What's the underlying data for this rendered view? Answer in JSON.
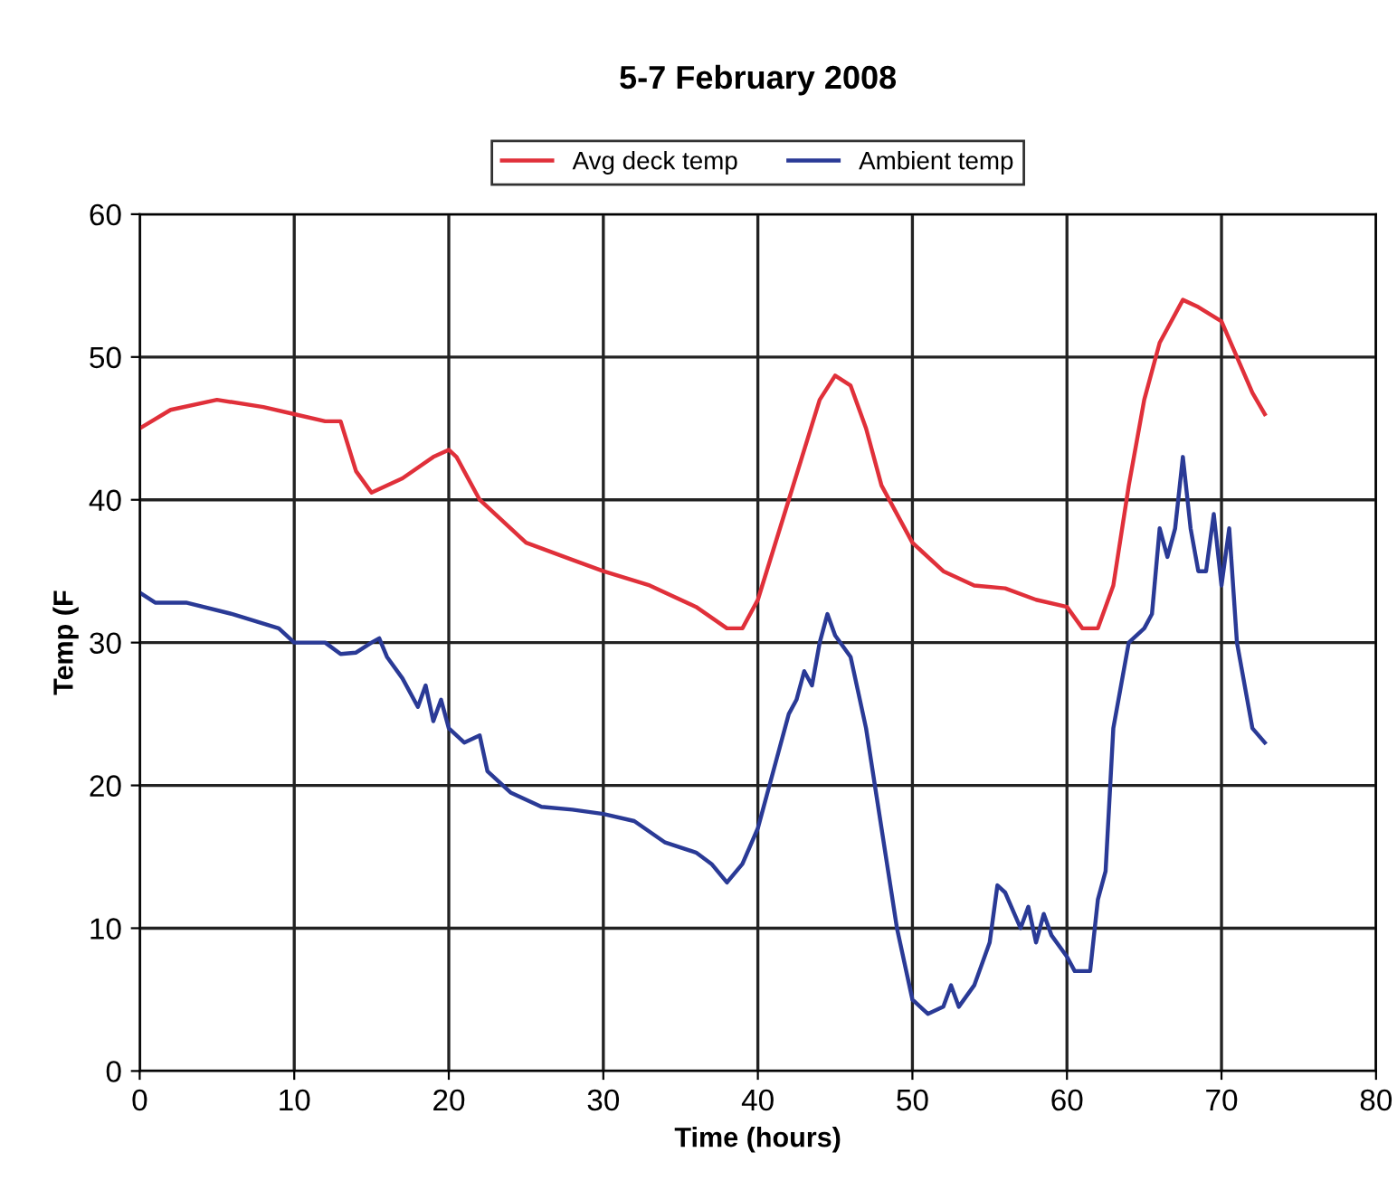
{
  "chart_data": {
    "type": "line",
    "title": "5-7 February 2008",
    "xlabel": "Time (hours)",
    "ylabel": "Temp (F",
    "xlim": [
      0,
      80
    ],
    "ylim": [
      0,
      60
    ],
    "xticks": [
      0,
      10,
      20,
      30,
      40,
      50,
      60,
      70,
      80
    ],
    "yticks": [
      0,
      10,
      20,
      30,
      40,
      50,
      60
    ],
    "grid": true,
    "legend": "top",
    "marker": "none",
    "line_style": "solid",
    "series": [
      {
        "name": "Avg deck temp",
        "color": "#e0303a",
        "x": [
          0,
          2,
          5,
          8,
          10,
          12,
          13,
          14,
          15,
          17,
          19,
          20,
          20.5,
          22,
          25,
          28,
          30,
          33,
          36,
          38,
          39,
          40,
          42,
          44,
          45,
          46,
          47,
          48,
          50,
          52,
          54,
          56,
          58,
          60,
          61,
          62,
          63,
          64,
          65,
          66,
          67.5,
          68.5,
          70,
          71,
          72,
          72.8
        ],
        "values": [
          45,
          46.3,
          47,
          46.5,
          46,
          45.5,
          45.5,
          42,
          40.5,
          41.5,
          43,
          43.5,
          43,
          40,
          37,
          35.8,
          35,
          34,
          32.5,
          31,
          31,
          33,
          40,
          47,
          48.7,
          48,
          45,
          41,
          37,
          35,
          34,
          33.8,
          33,
          32.5,
          31,
          31,
          34,
          41,
          47,
          51,
          54,
          53.5,
          52.5,
          50,
          47.5,
          46
        ]
      },
      {
        "name": "Ambient temp",
        "color": "#2a3a96",
        "x": [
          0,
          1,
          3,
          6,
          9,
          10,
          12,
          13,
          14,
          15,
          15.5,
          16,
          17,
          18,
          18.5,
          19,
          19.5,
          20,
          21,
          22,
          22.5,
          24,
          26,
          28,
          30,
          32,
          34,
          36,
          37,
          38,
          39,
          40,
          41,
          42,
          42.5,
          43,
          43.5,
          44,
          44.5,
          45,
          46,
          47,
          48,
          49,
          50,
          51,
          52,
          52.5,
          53,
          54,
          55,
          55.5,
          56,
          57,
          57.5,
          58,
          58.5,
          59,
          60,
          60.5,
          61.5,
          62,
          62.5,
          63,
          64,
          65,
          65.5,
          66,
          66.5,
          67,
          67.5,
          68,
          68.5,
          69,
          69.5,
          70,
          70.5,
          71,
          72,
          72.8
        ],
        "values": [
          33.5,
          32.8,
          32.8,
          32,
          31,
          30,
          30,
          29.2,
          29.3,
          30,
          30.3,
          29,
          27.5,
          25.5,
          27,
          24.5,
          26,
          24,
          23,
          23.5,
          21,
          19.5,
          18.5,
          18.3,
          18,
          17.5,
          16,
          15.3,
          14.5,
          13.2,
          14.5,
          17,
          21,
          25,
          26,
          28,
          27,
          30,
          32,
          30.5,
          29,
          24,
          17,
          10,
          5,
          4,
          4.5,
          6,
          4.5,
          6,
          9,
          13,
          12.5,
          10,
          11.5,
          9,
          11,
          9.5,
          8,
          7,
          7,
          12,
          14,
          24,
          30,
          31,
          32,
          38,
          36,
          38,
          43,
          38,
          35,
          35,
          39,
          34,
          38,
          30,
          24,
          23
        ]
      }
    ]
  }
}
